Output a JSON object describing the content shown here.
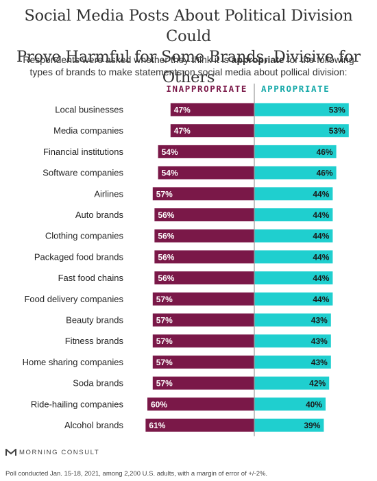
{
  "title_line1": "Social Media Posts About Political Division Could",
  "title_line2": "Prove Harmful for Some Brands, Divisive for Others",
  "subtitle_line1_pre": "Respondents were asked whether they think it is ",
  "subtitle_bold": "appropriate",
  "subtitle_line1_post": " for the following",
  "subtitle_line2": "types of brands to make statements on social media about pollical division:",
  "brand_name": "MORNING CONSULT",
  "footnote": "Poll conducted Jan. 15-18, 2021, among 2,200 U.S. adults, with a margin of error of +/-2%.",
  "colors": {
    "inappropriate": "#7a1848",
    "appropriate": "#1fcfcf",
    "inappropriate_text": "#7a1848",
    "appropriate_text": "#14a8a8"
  },
  "chart_data": {
    "type": "bar",
    "orientation": "horizontal-diverging",
    "categories": [
      "Local businesses",
      "Media companies",
      "Financial institutions",
      "Software companies",
      "Airlines",
      "Auto brands",
      "Clothing companies",
      "Packaged food brands",
      "Fast food chains",
      "Food delivery companies",
      "Beauty brands",
      "Fitness brands",
      "Home sharing companies",
      "Soda brands",
      "Ride-hailing companies",
      "Alcohol brands"
    ],
    "series": [
      {
        "name": "INAPPROPRIATE",
        "values": [
          47,
          47,
          54,
          54,
          57,
          56,
          56,
          56,
          56,
          57,
          57,
          57,
          57,
          57,
          60,
          61
        ]
      },
      {
        "name": "APPROPRIATE",
        "values": [
          53,
          53,
          46,
          46,
          44,
          44,
          44,
          44,
          44,
          44,
          43,
          43,
          43,
          42,
          40,
          39
        ]
      }
    ],
    "value_suffix": "%"
  }
}
